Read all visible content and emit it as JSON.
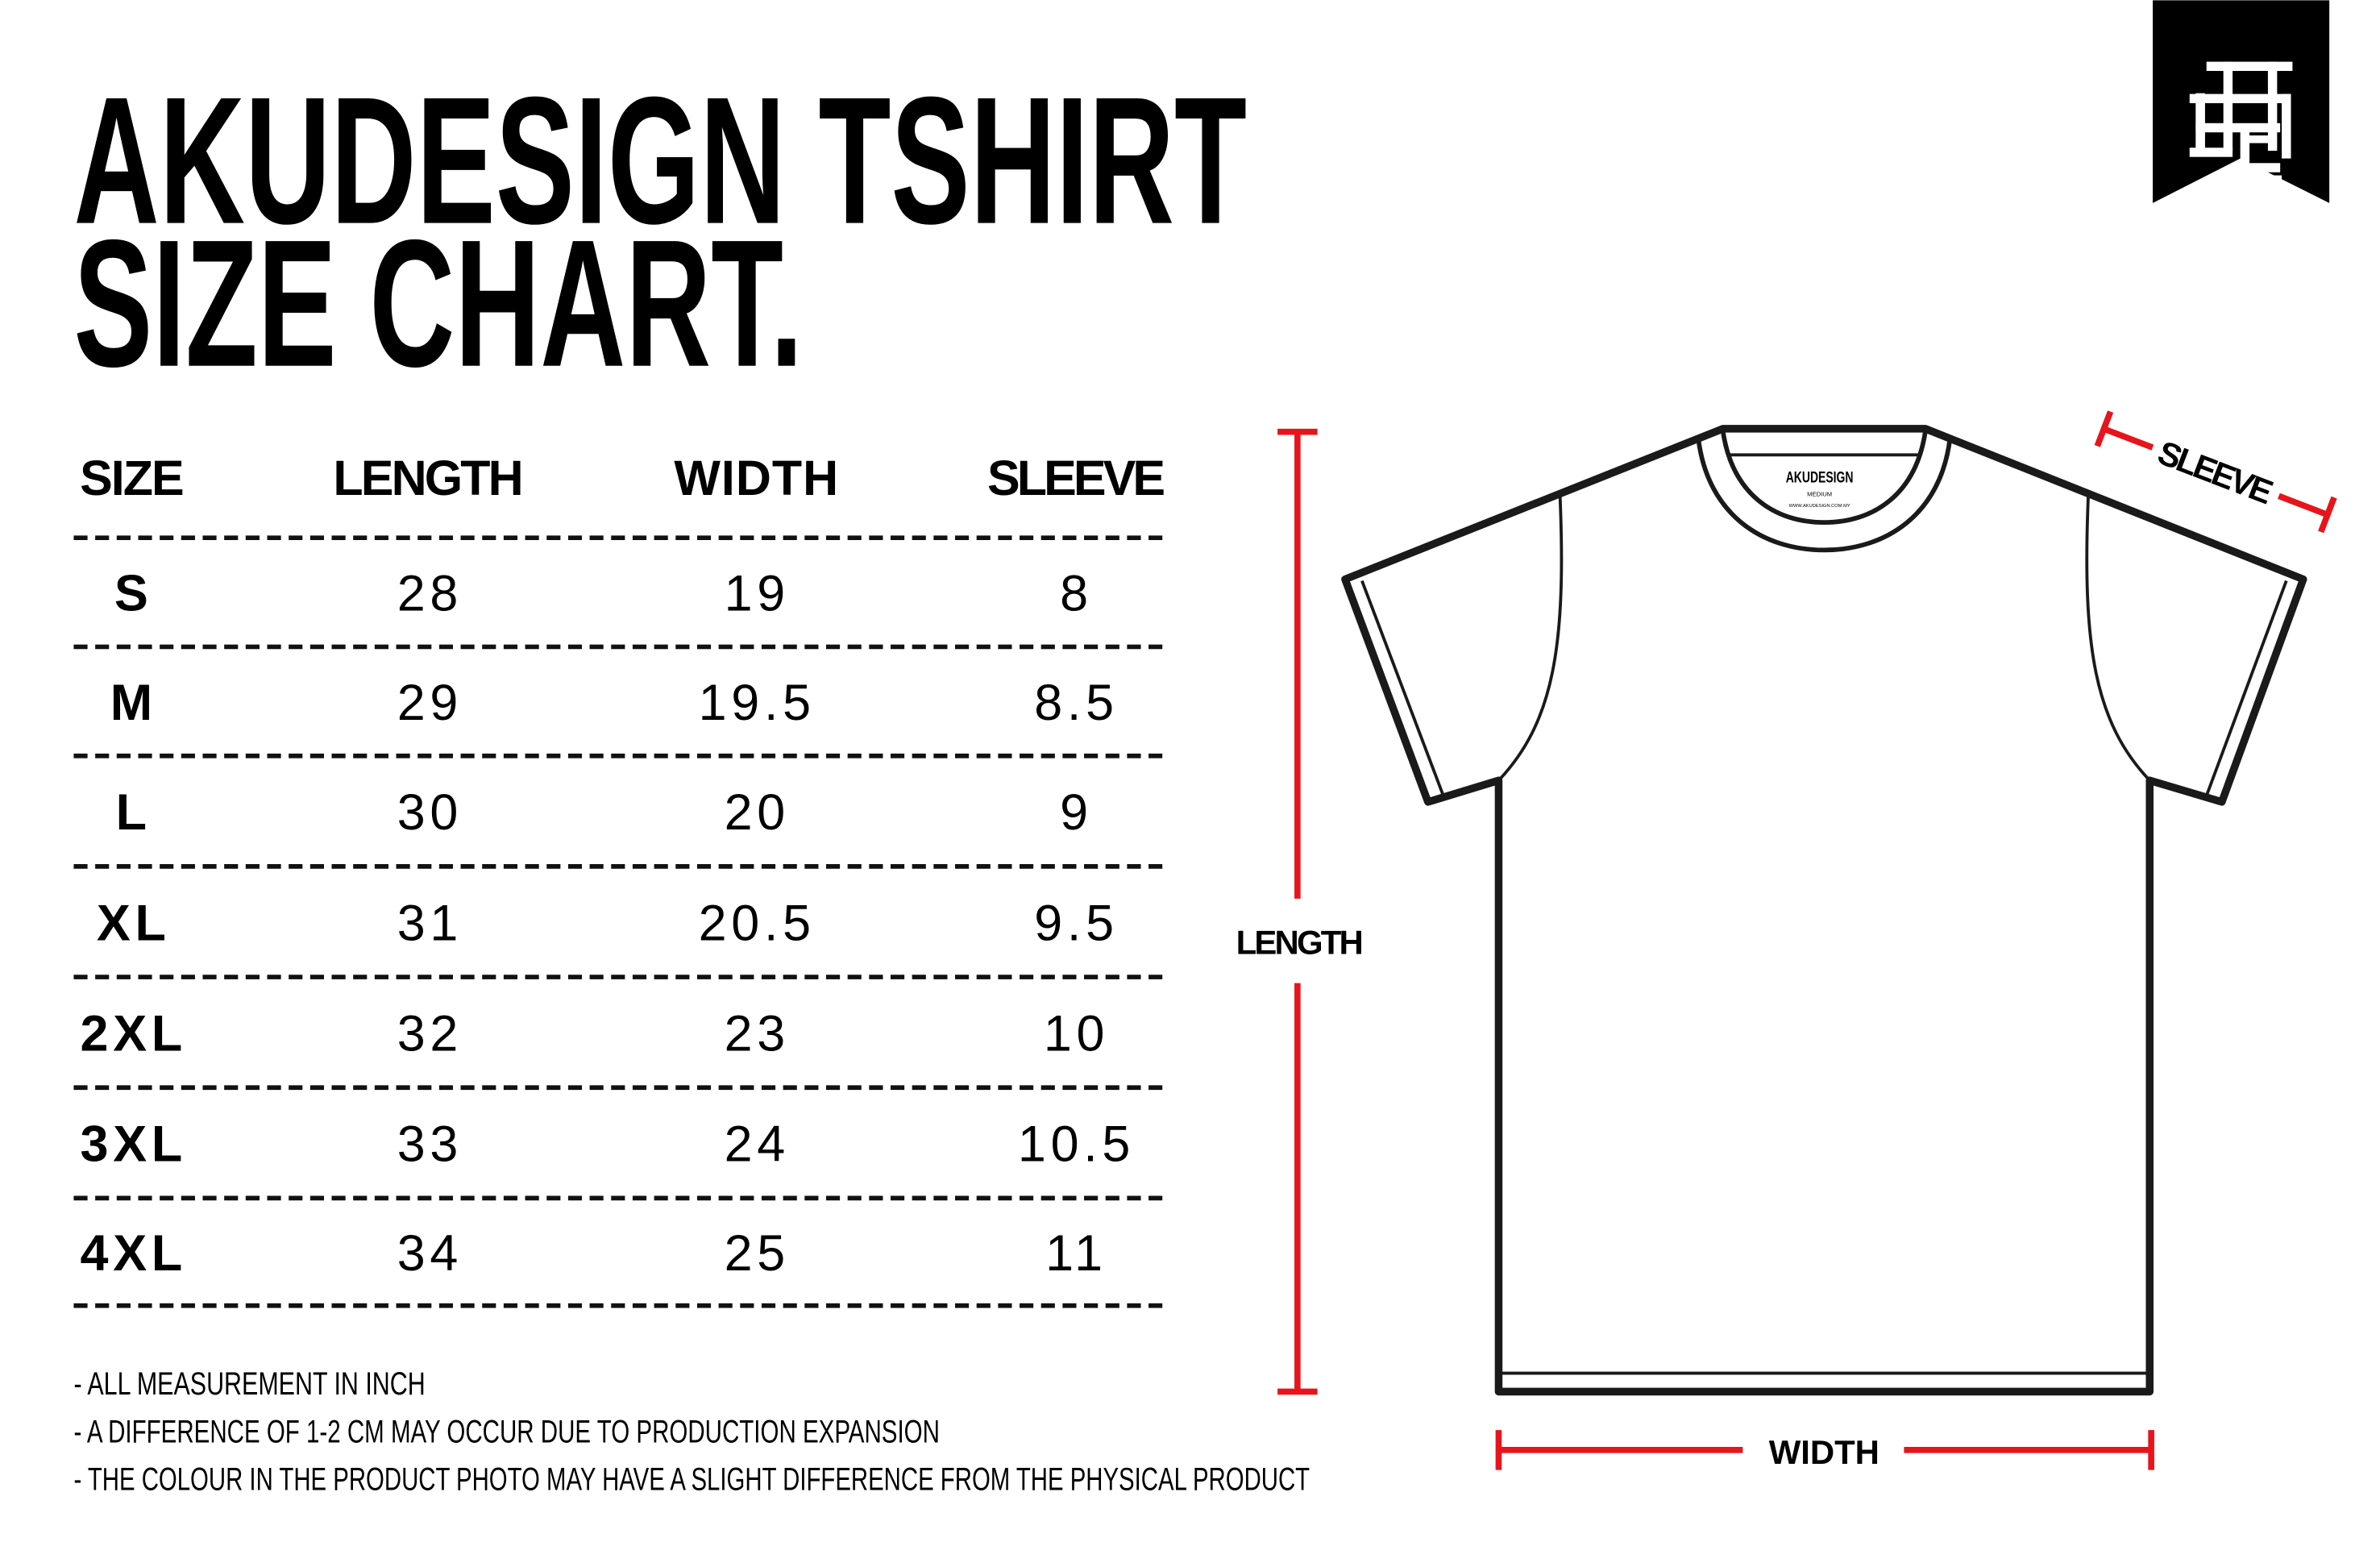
{
  "title": {
    "line1": "AKUDESIGN TSHIRT",
    "line2": "SIZE CHART."
  },
  "logo": {
    "name": "akudesign-monogram-logo",
    "letters": "ADC"
  },
  "table": {
    "headers": [
      "SIZE",
      "LENGTH",
      "WIDTH",
      "SLEEVE"
    ],
    "rows": [
      [
        "S",
        "28",
        "19",
        "8"
      ],
      [
        "M",
        "29",
        "19.5",
        "8.5"
      ],
      [
        "L",
        "30",
        "20",
        "9"
      ],
      [
        "XL",
        "31",
        "20.5",
        "9.5"
      ],
      [
        "2XL",
        "32",
        "23",
        "10"
      ],
      [
        "3XL",
        "33",
        "24",
        "10.5"
      ],
      [
        "4XL",
        "34",
        "25",
        "11"
      ]
    ]
  },
  "notes": [
    "- ALL MEASUREMENT IN INCH",
    "- A DIFFERENCE OF 1-2 CM MAY OCCUR DUE TO PRODUCTION EXPANSION",
    "- THE COLOUR IN THE PRODUCT PHOTO MAY HAVE A SLIGHT DIFFERENCE FROM THE PHYSICAL PRODUCT"
  ],
  "diagram": {
    "length_label": "LENGTH",
    "width_label": "WIDTH",
    "sleeve_label": "SLEEVE",
    "tag_brand": "AKUDESIGN",
    "tag_size": "MEDIUM",
    "tag_url": "WWW.AKUDESIGN.COM.MY"
  },
  "colors": {
    "accent": "#e8141b",
    "ink": "#000000",
    "background": "#ffffff"
  }
}
